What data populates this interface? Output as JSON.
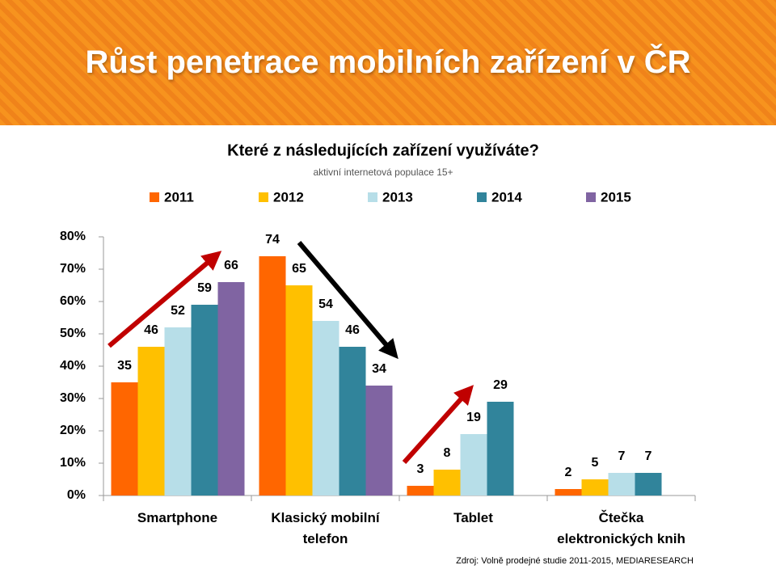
{
  "header": {
    "title": "Růst penetrace mobilních zařízení v ČR"
  },
  "chart_data": {
    "type": "bar",
    "title": "Které z následujících zařízení využíváte?",
    "subtitle": "aktivní internetová populace 15+",
    "categories": [
      "Smartphone",
      "Klasický mobilní telefon",
      "Tablet",
      "Čtečka elektronických knih"
    ],
    "series": [
      {
        "name": "2011",
        "color": "#ff6600",
        "values": [
          35,
          74,
          3,
          2
        ]
      },
      {
        "name": "2012",
        "color": "#ffc000",
        "values": [
          46,
          65,
          8,
          5
        ]
      },
      {
        "name": "2013",
        "color": "#b7dee8",
        "values": [
          52,
          54,
          19,
          7
        ]
      },
      {
        "name": "2014",
        "color": "#31849b",
        "values": [
          59,
          46,
          29,
          7
        ]
      },
      {
        "name": "2015",
        "color": "#8064a2",
        "values": [
          66,
          34,
          null,
          null
        ]
      }
    ],
    "ylim": [
      0,
      80
    ],
    "yticks": [
      {
        "value": 0,
        "label": "0%"
      },
      {
        "value": 10,
        "label": "10%"
      },
      {
        "value": 20,
        "label": "20%"
      },
      {
        "value": 30,
        "label": "30%"
      },
      {
        "value": 40,
        "label": "40%"
      },
      {
        "value": 50,
        "label": "50%"
      },
      {
        "value": 60,
        "label": "60%"
      },
      {
        "value": 70,
        "label": "70%"
      },
      {
        "value": 80,
        "label": "80%"
      }
    ],
    "legend": "top",
    "source": "Zdroj: Volně prodejné studie 2011-2015, MEDIARESEARCH"
  }
}
